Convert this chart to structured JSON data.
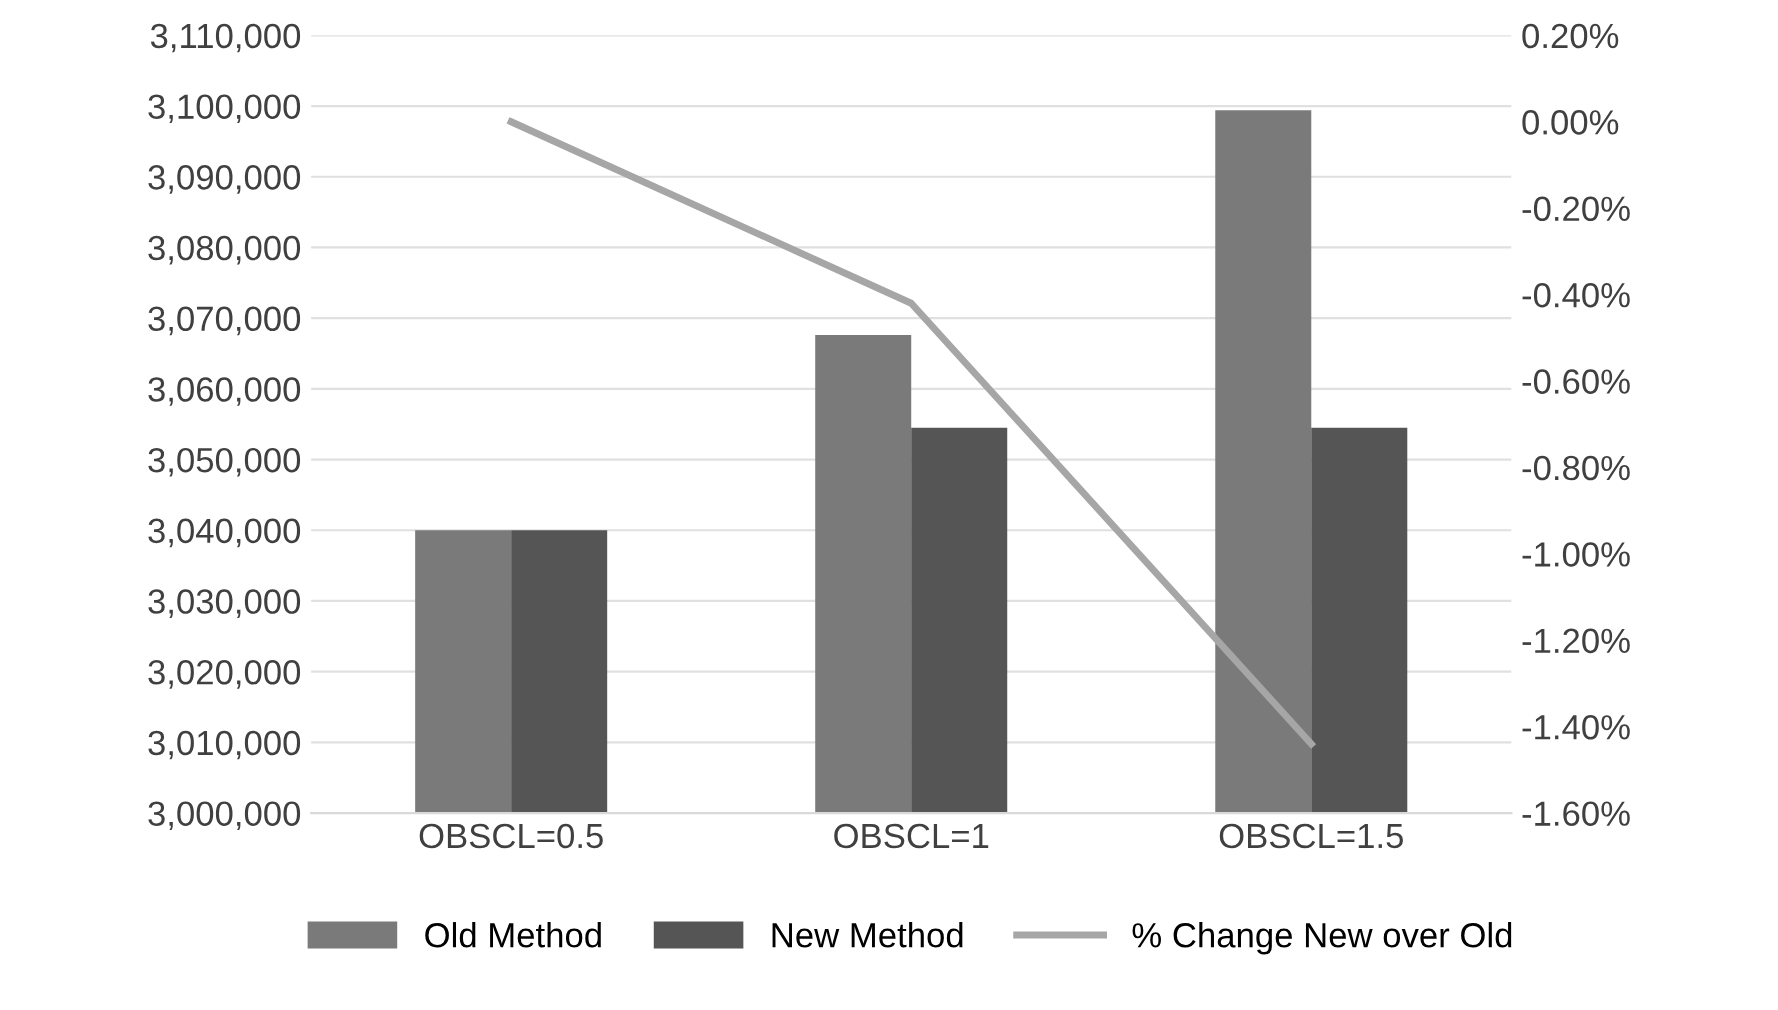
{
  "chart_data": {
    "type": "bar",
    "categories": [
      "OBSCL=0.5",
      "OBSCL=1",
      "OBSCL=1.5"
    ],
    "series": [
      {
        "name": "Old Method",
        "color": "#7a7a7a",
        "values": [
          3040000,
          3067600,
          3099400
        ]
      },
      {
        "name": "New Method",
        "color": "#555555",
        "values": [
          3040000,
          3054500,
          3054500
        ]
      },
      {
        "name": "% Change New over Old",
        "type": "line",
        "axis": "y2",
        "color": "#a6a6a6",
        "values": [
          0.0,
          -0.42,
          -1.44
        ]
      }
    ],
    "ylim": [
      3000000,
      3110000
    ],
    "yticks": [
      {
        "value": 3000000,
        "label": "3,000,000"
      },
      {
        "value": 3010000,
        "label": "3,010,000"
      },
      {
        "value": 3020000,
        "label": "3,020,000"
      },
      {
        "value": 3030000,
        "label": "3,030,000"
      },
      {
        "value": 3040000,
        "label": "3,040,000"
      },
      {
        "value": 3050000,
        "label": "3,050,000"
      },
      {
        "value": 3060000,
        "label": "3,060,000"
      },
      {
        "value": 3070000,
        "label": "3,070,000"
      },
      {
        "value": 3080000,
        "label": "3,080,000"
      },
      {
        "value": 3090000,
        "label": "3,090,000"
      },
      {
        "value": 3100000,
        "label": "3,100,000"
      },
      {
        "value": 3110000,
        "label": "3,110,000"
      }
    ],
    "y2lim": [
      -1.6,
      0.2
    ],
    "y2ticks": [
      {
        "value": -1.6,
        "label": "-1.60%"
      },
      {
        "value": -1.4,
        "label": "-1.40%"
      },
      {
        "value": -1.2,
        "label": "-1.20%"
      },
      {
        "value": -1.0,
        "label": "-1.00%"
      },
      {
        "value": -0.8,
        "label": "-0.80%"
      },
      {
        "value": -0.6,
        "label": "-0.60%"
      },
      {
        "value": -0.4,
        "label": "-0.40%"
      },
      {
        "value": -0.2,
        "label": "-0.20%"
      },
      {
        "value": 0.0,
        "label": "0.00%"
      },
      {
        "value": 0.2,
        "label": "0.20%"
      }
    ],
    "grid": "y",
    "legend": "bottom",
    "marker": "none",
    "line_style": "solid"
  }
}
